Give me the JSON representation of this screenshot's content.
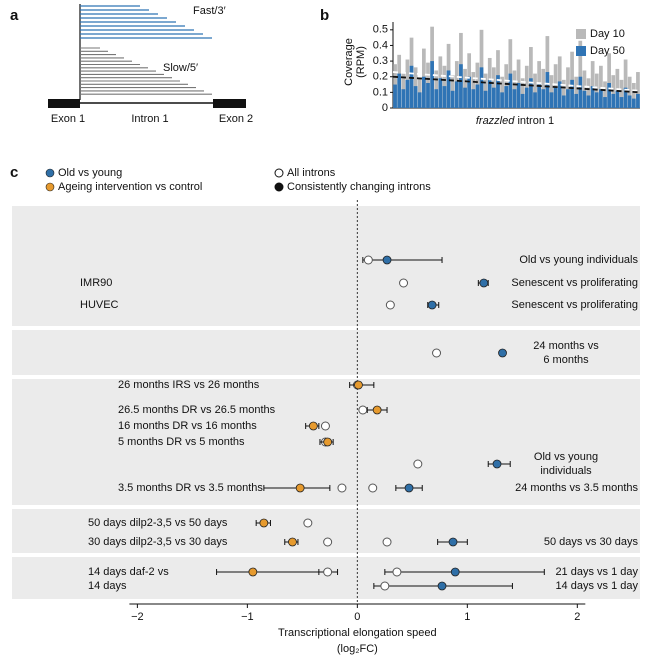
{
  "panel_labels": [
    "a",
    "b",
    "c"
  ],
  "panel_a": {
    "fast_label": "Fast/3′",
    "slow_label": "Slow/5′",
    "exon1": "Exon 1",
    "intron": "Intron 1",
    "exon2": "Exon 2"
  },
  "chart_data": [
    {
      "type": "bar",
      "ylabel": [
        "Coverage",
        "(RPM)"
      ],
      "xlabel": [
        "frazzled",
        "intron 1"
      ],
      "categories": [
        null,
        null,
        null,
        null,
        null,
        null,
        null,
        null,
        null,
        null,
        null,
        null,
        null,
        null,
        null,
        null,
        null,
        null,
        null,
        null,
        null,
        null,
        null,
        null,
        null,
        null,
        null,
        null,
        null,
        null,
        null,
        null,
        null,
        null,
        null,
        null,
        null,
        null,
        null,
        null,
        null,
        null,
        null,
        null,
        null,
        null,
        null,
        null,
        null,
        null,
        null,
        null,
        null,
        null,
        null,
        null,
        null,
        null,
        null,
        null
      ],
      "ylim": [
        0,
        0.55
      ],
      "yticks": [
        0,
        0.1,
        0.2,
        0.3,
        0.4,
        0.5
      ],
      "legend": "top-right",
      "series": [
        {
          "name": "Day 10",
          "color": "#b9b9b9",
          "trend": [
            0.23,
            0.11
          ],
          "trend_color": "#ffffff",
          "values": [
            0.28,
            0.34,
            0.22,
            0.31,
            0.45,
            0.26,
            0.19,
            0.38,
            0.29,
            0.52,
            0.24,
            0.33,
            0.27,
            0.41,
            0.21,
            0.3,
            0.48,
            0.25,
            0.35,
            0.23,
            0.29,
            0.5,
            0.22,
            0.32,
            0.26,
            0.37,
            0.2,
            0.28,
            0.44,
            0.24,
            0.31,
            0.19,
            0.27,
            0.39,
            0.22,
            0.3,
            0.25,
            0.46,
            0.21,
            0.28,
            0.33,
            0.18,
            0.26,
            0.36,
            0.2,
            0.43,
            0.24,
            0.19,
            0.3,
            0.22,
            0.27,
            0.17,
            0.35,
            0.21,
            0.25,
            0.18,
            0.31,
            0.2,
            0.16,
            0.23
          ]
        },
        {
          "name": "Day 50",
          "color": "#2f74b5",
          "trend": [
            0.2,
            0.1
          ],
          "trend_color": "#111111",
          "values": [
            0.15,
            0.22,
            0.12,
            0.18,
            0.27,
            0.14,
            0.1,
            0.2,
            0.16,
            0.3,
            0.12,
            0.19,
            0.14,
            0.24,
            0.11,
            0.17,
            0.28,
            0.13,
            0.2,
            0.12,
            0.15,
            0.26,
            0.11,
            0.18,
            0.13,
            0.21,
            0.1,
            0.14,
            0.22,
            0.12,
            0.16,
            0.09,
            0.13,
            0.19,
            0.1,
            0.15,
            0.12,
            0.23,
            0.1,
            0.13,
            0.17,
            0.08,
            0.12,
            0.18,
            0.09,
            0.2,
            0.11,
            0.08,
            0.14,
            0.1,
            0.12,
            0.07,
            0.16,
            0.09,
            0.11,
            0.07,
            0.13,
            0.08,
            0.06,
            0.09
          ]
        }
      ]
    },
    {
      "type": "forest",
      "xlabel": "Transcriptional elongation speed",
      "xlabel_unit": "(log₂FC)",
      "xlim": [
        -3.14,
        2.57
      ],
      "xticks": [
        {
          "value": -2,
          "label": "−2"
        },
        {
          "value": -1,
          "label": "−1"
        },
        0,
        1,
        2
      ],
      "zero_line": true,
      "legend": {
        "colors": [
          {
            "label": "Old vs young",
            "color": "#2f6fa7"
          },
          {
            "label": "Ageing intervention vs control",
            "color": "#e69a2e"
          }
        ],
        "fills": [
          {
            "label": "All introns",
            "filled": false
          },
          {
            "label": "Consistently changing introns",
            "filled": true
          }
        ]
      },
      "groups": [
        {
          "rows": [
            {
              "right_label": [
                "Old vs young individuals"
              ],
              "points": [
                {
                  "x": 0.1,
                  "lo": 0.05,
                  "hi": 0.77,
                  "filled": false,
                  "color": "#2f6fa7"
                },
                {
                  "x": 0.27,
                  "filled": true,
                  "color": "#2f6fa7"
                }
              ]
            },
            {
              "left_label": [
                "IMR90"
              ],
              "right_label": [
                "Senescent vs proliferating"
              ],
              "points": [
                {
                  "x": 0.42,
                  "filled": false,
                  "color": "#2f6fa7"
                },
                {
                  "x": 1.15,
                  "lo": 1.1,
                  "hi": 1.19,
                  "filled": true,
                  "color": "#2f6fa7"
                }
              ]
            },
            {
              "left_label": [
                "HUVEC"
              ],
              "right_label": [
                "Senescent vs proliferating"
              ],
              "points": [
                {
                  "x": 0.3,
                  "filled": false,
                  "color": "#2f6fa7"
                },
                {
                  "x": 0.68,
                  "lo": 0.64,
                  "hi": 0.74,
                  "filled": true,
                  "color": "#2f6fa7"
                }
              ]
            }
          ]
        },
        {
          "rows": [
            {
              "right_label": [
                "24 months vs",
                "6 months"
              ],
              "points": [
                {
                  "x": 0.72,
                  "filled": false,
                  "color": "#2f6fa7"
                },
                {
                  "x": 1.32,
                  "filled": true,
                  "color": "#2f6fa7"
                }
              ]
            }
          ]
        },
        {
          "rows": [
            {
              "left_label": [
                "26 months IRS vs 26 months"
              ],
              "points": [
                {
                  "x": 0.0,
                  "filled": false,
                  "color": "#e69a2e"
                },
                {
                  "x": 0.01,
                  "lo": -0.07,
                  "hi": 0.15,
                  "filled": true,
                  "color": "#e69a2e"
                }
              ]
            },
            {
              "left_label": [
                "26.5 months DR vs 26.5 months"
              ],
              "points": [
                {
                  "x": 0.05,
                  "filled": false,
                  "color": "#e69a2e"
                },
                {
                  "x": 0.18,
                  "lo": 0.09,
                  "hi": 0.27,
                  "filled": true,
                  "color": "#e69a2e"
                }
              ]
            },
            {
              "left_label": [
                "16 months DR vs 16 months"
              ],
              "points": [
                {
                  "x": -0.4,
                  "lo": -0.47,
                  "hi": -0.35,
                  "filled": true,
                  "color": "#e69a2e"
                },
                {
                  "x": -0.29,
                  "filled": false,
                  "color": "#e69a2e"
                }
              ]
            },
            {
              "left_label": [
                "5 months DR vs 5 months"
              ],
              "points": [
                {
                  "x": -0.29,
                  "filled": false,
                  "color": "#e69a2e"
                },
                {
                  "x": -0.27,
                  "lo": -0.34,
                  "hi": -0.22,
                  "filled": true,
                  "color": "#e69a2e"
                }
              ]
            },
            {
              "right_label": [
                "Old vs young",
                "individuals"
              ],
              "points": [
                {
                  "x": 0.55,
                  "filled": false,
                  "color": "#2f6fa7"
                },
                {
                  "x": 1.27,
                  "lo": 1.19,
                  "hi": 1.39,
                  "filled": true,
                  "color": "#2f6fa7"
                }
              ]
            },
            {
              "left_label": [
                "3.5 months DR vs 3.5 months"
              ],
              "right_label": [
                "24 months vs 3.5 months"
              ],
              "points": [
                {
                  "x": -0.52,
                  "lo": -0.85,
                  "hi": -0.25,
                  "filled": true,
                  "color": "#e69a2e"
                },
                {
                  "x": -0.14,
                  "filled": false,
                  "color": "#e69a2e"
                },
                {
                  "x": 0.14,
                  "filled": false,
                  "color": "#2f6fa7"
                },
                {
                  "x": 0.47,
                  "lo": 0.35,
                  "hi": 0.59,
                  "filled": true,
                  "color": "#2f6fa7"
                }
              ]
            }
          ]
        },
        {
          "rows": [
            {
              "left_label": [
                "50 days dilp2-3,5 vs 50 days"
              ],
              "points": [
                {
                  "x": -0.85,
                  "lo": -0.92,
                  "hi": -0.79,
                  "filled": true,
                  "color": "#e69a2e"
                },
                {
                  "x": -0.45,
                  "filled": false,
                  "color": "#e69a2e"
                }
              ]
            },
            {
              "left_label": [
                "30 days dilp2-3,5 vs 30 days"
              ],
              "right_label": [
                "50 days vs 30 days"
              ],
              "points": [
                {
                  "x": -0.59,
                  "lo": -0.66,
                  "hi": -0.54,
                  "filled": true,
                  "color": "#e69a2e"
                },
                {
                  "x": -0.27,
                  "filled": false,
                  "color": "#e69a2e"
                },
                {
                  "x": 0.27,
                  "filled": false,
                  "color": "#2f6fa7"
                },
                {
                  "x": 0.87,
                  "lo": 0.73,
                  "hi": 1.0,
                  "filled": true,
                  "color": "#2f6fa7"
                }
              ]
            }
          ]
        },
        {
          "rows": [
            {
              "left_label": [
                "14 days daf-2 vs",
                "14 days"
              ],
              "right_label": [
                "21 days vs 1 day"
              ],
              "points": [
                {
                  "x": -0.95,
                  "lo": -1.28,
                  "hi": -0.29,
                  "filled": true,
                  "color": "#e69a2e"
                },
                {
                  "x": -0.27,
                  "lo": -0.35,
                  "hi": -0.18,
                  "filled": false,
                  "color": "#e69a2e"
                },
                {
                  "x": 0.36,
                  "lo": 0.25,
                  "hi": 1.7,
                  "filled": false,
                  "color": "#2f6fa7"
                },
                {
                  "x": 0.89,
                  "filled": true,
                  "color": "#2f6fa7"
                }
              ]
            },
            {
              "right_label": [
                "14 days vs 1 day"
              ],
              "points": [
                {
                  "x": 0.25,
                  "lo": 0.15,
                  "hi": 1.41,
                  "filled": false,
                  "color": "#2f6fa7"
                },
                {
                  "x": 0.77,
                  "filled": true,
                  "color": "#2f6fa7"
                }
              ]
            }
          ]
        }
      ]
    }
  ]
}
